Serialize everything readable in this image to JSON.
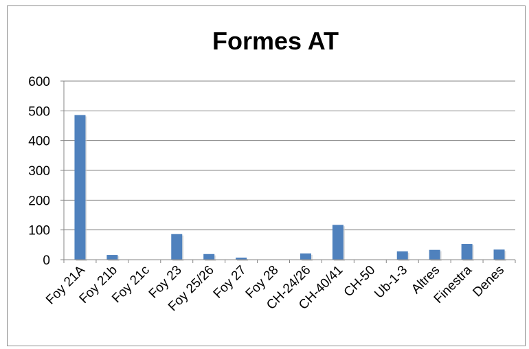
{
  "chart_data": {
    "type": "bar",
    "title": "Formes AT",
    "xlabel": "",
    "ylabel": "",
    "categories": [
      "Foy 21A",
      "Foy 21b",
      "Foy 21c",
      "Foy 23",
      "Foy 25/26",
      "Foy 27",
      "Foy 28",
      "CH-24/26",
      "CH-40/41",
      "CH-50",
      "Ub-1-3",
      "Altres",
      "Finestra",
      "Denes"
    ],
    "values": [
      486,
      16,
      0,
      86,
      19,
      7,
      0,
      21,
      117,
      0,
      28,
      33,
      53,
      34
    ],
    "ylim": [
      0,
      600
    ],
    "yticks": [
      "0",
      "100",
      "200",
      "300",
      "400",
      "500",
      "600"
    ],
    "grid": true,
    "legend": "none",
    "colors": {
      "bar": "#4f81bd",
      "grid": "#868686",
      "axis": "#868686"
    }
  }
}
